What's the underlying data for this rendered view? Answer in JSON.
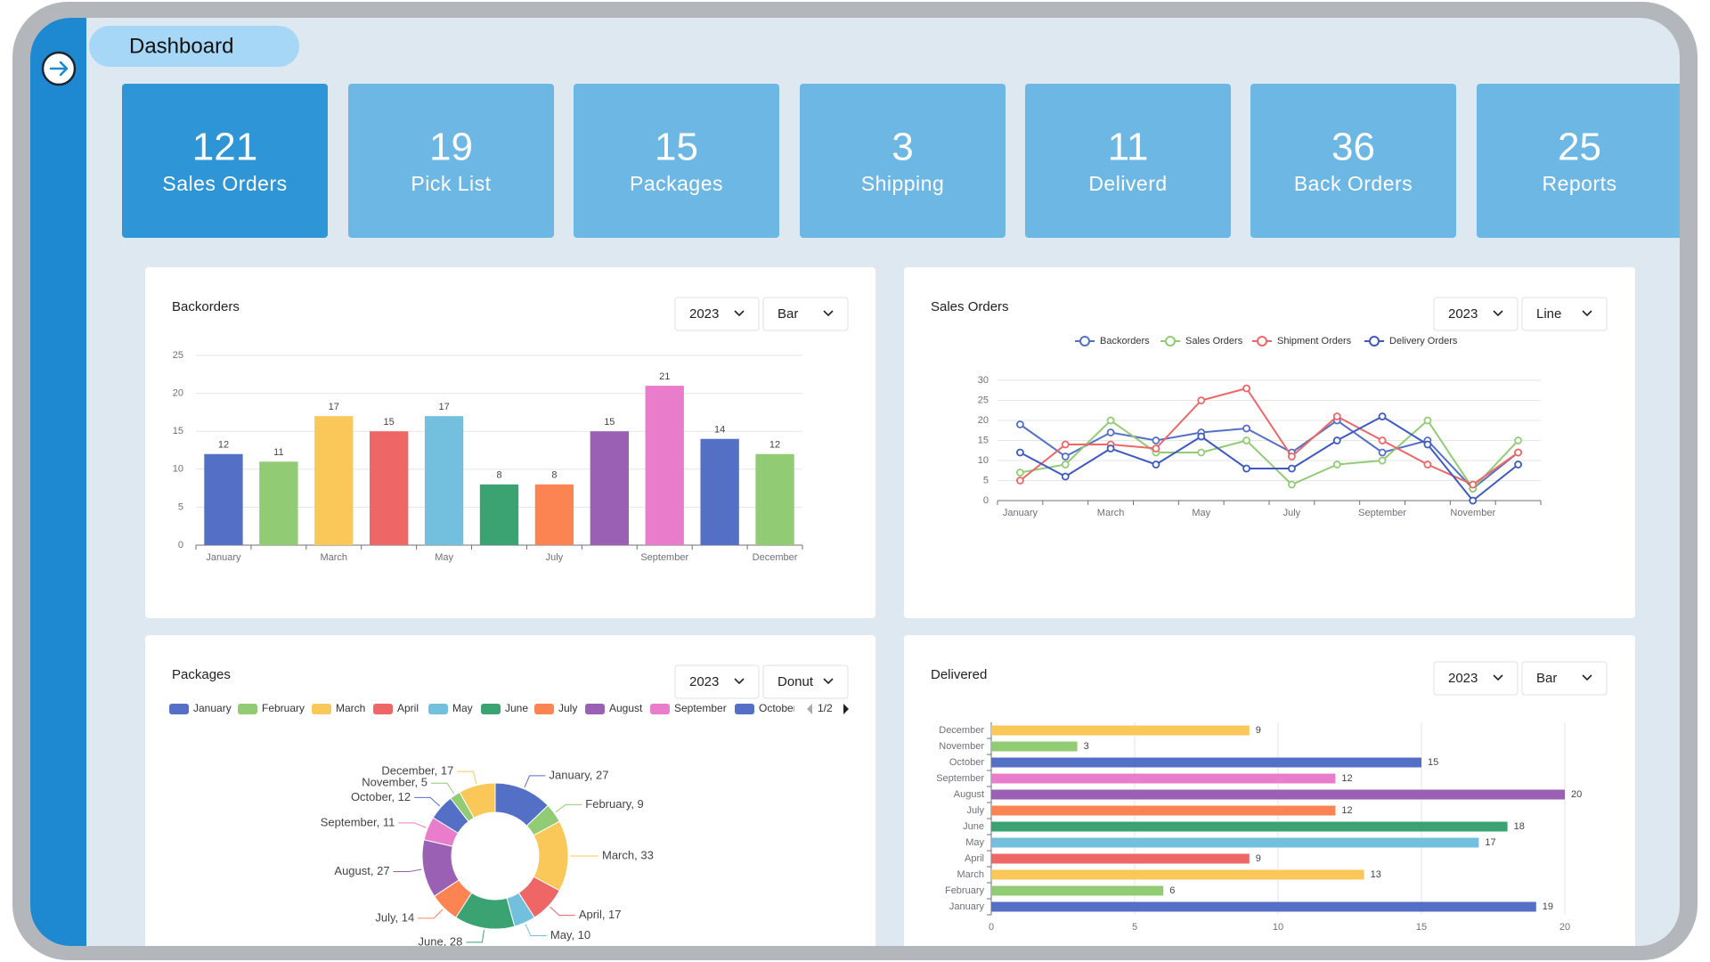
{
  "header": {
    "title": "Dashboard"
  },
  "cards": [
    {
      "value": 121,
      "label": "Sales Orders"
    },
    {
      "value": 19,
      "label": "Pick List"
    },
    {
      "value": 15,
      "label": "Packages"
    },
    {
      "value": 3,
      "label": "Shipping"
    },
    {
      "value": 11,
      "label": "Deliverd"
    },
    {
      "value": 36,
      "label": "Back Orders"
    },
    {
      "value": 25,
      "label": "Reports"
    }
  ],
  "chart_data": [
    {
      "type": "bar",
      "title": "Backorders",
      "year": "2023",
      "chart_type": "Bar",
      "categories": [
        "January",
        null,
        "March",
        null,
        "May",
        null,
        "July",
        null,
        "September",
        null,
        "December"
      ],
      "values": [
        12,
        11,
        17,
        15,
        17,
        8,
        8,
        15,
        21,
        14,
        12
      ],
      "colors": [
        "#5470c6",
        "#91cc75",
        "#fac858",
        "#ee6666",
        "#73c0de",
        "#3ba272",
        "#fc8452",
        "#9a60b4",
        "#ea7ccc",
        "#5470c6",
        "#91cc75"
      ],
      "ylim": [
        0,
        25
      ],
      "yticks": [
        0,
        5,
        10,
        15,
        20,
        25
      ],
      "grid": true
    },
    {
      "type": "line",
      "title": "Sales Orders",
      "year": "2023",
      "chart_type": "Line",
      "categories": [
        "January",
        null,
        "March",
        null,
        "May",
        null,
        "July",
        null,
        "September",
        null,
        "November",
        null
      ],
      "series": [
        {
          "name": "Backorders",
          "color": "#5470c6",
          "values": [
            19,
            11,
            17,
            15,
            17,
            18,
            12,
            20,
            12,
            15,
            3,
            12
          ]
        },
        {
          "name": "Sales Orders",
          "color": "#91cc75",
          "values": [
            7,
            9,
            20,
            12,
            12,
            15,
            4,
            9,
            10,
            20,
            3,
            15
          ]
        },
        {
          "name": "Shipment Orders",
          "color": "#ee6666",
          "values": [
            5,
            14,
            14,
            13,
            25,
            28,
            11,
            21,
            15,
            9,
            4,
            12
          ]
        },
        {
          "name": "Delivery Orders",
          "color": "#3d59c2",
          "values": [
            12,
            6,
            13,
            9,
            16,
            8,
            8,
            15,
            21,
            14,
            0,
            9
          ]
        }
      ],
      "ylim": [
        0,
        30
      ],
      "yticks": [
        0,
        5,
        10,
        15,
        20,
        25,
        30
      ],
      "grid": true,
      "legend": "top"
    },
    {
      "type": "donut",
      "title": "Packages",
      "year": "2023",
      "chart_type": "Donut",
      "categories": [
        "January",
        "February",
        "March",
        "April",
        "May",
        "June",
        "July",
        "August",
        "September",
        "October",
        "November",
        "December"
      ],
      "values": [
        27,
        9,
        33,
        17,
        10,
        28,
        14,
        27,
        11,
        12,
        5,
        17
      ],
      "value_labels": [
        "January, 27",
        "February, 9",
        "March, 33",
        "April, 17",
        "May, 10",
        "June, 28",
        "July, 14",
        "August, 27",
        "September, 11",
        "October, 12",
        "November, 5",
        "December, 17"
      ],
      "colors": [
        "#5470c6",
        "#91cc75",
        "#fac858",
        "#ee6666",
        "#73c0de",
        "#3ba272",
        "#fc8452",
        "#9a60b4",
        "#ea7ccc",
        "#5470c6",
        "#91cc75",
        "#fac858"
      ],
      "legend": "top",
      "legend_page": "1/2"
    },
    {
      "type": "hbar",
      "title": "Delivered",
      "year": "2023",
      "chart_type": "Bar",
      "categories": [
        "January",
        "February",
        "March",
        "April",
        "May",
        "June",
        "July",
        "August",
        "September",
        "October",
        "November",
        "December"
      ],
      "values": [
        19,
        6,
        13,
        9,
        17,
        18,
        12,
        20,
        12,
        15,
        3,
        9
      ],
      "colors": [
        "#5470c6",
        "#91cc75",
        "#fac858",
        "#ee6666",
        "#73c0de",
        "#3ba272",
        "#fc8452",
        "#9a60b4",
        "#ea7ccc",
        "#5470c6",
        "#91cc75",
        "#fac858"
      ],
      "xlim": [
        0,
        20
      ],
      "xticks": [
        0,
        5,
        10,
        15,
        20
      ],
      "grid": true
    }
  ]
}
